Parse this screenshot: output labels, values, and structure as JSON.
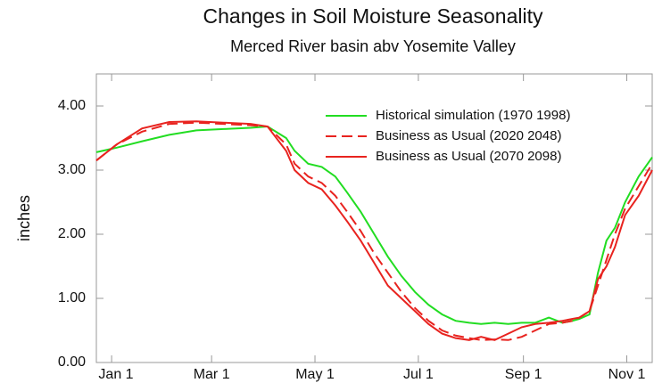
{
  "chart_data": {
    "type": "line",
    "title": "Changes in Soil  Moisture Seasonality",
    "subtitle": "Merced River basin abv Yosemite Valley",
    "y_label": "inches",
    "x": [
      -9,
      3,
      18,
      34,
      50,
      66,
      82,
      92,
      103,
      108,
      116,
      124,
      132,
      139,
      147,
      155,
      163,
      171,
      179,
      187,
      195,
      203,
      211,
      218,
      226,
      234,
      242,
      250,
      258,
      266,
      272,
      276,
      282,
      287,
      292,
      297,
      303,
      311,
      319
    ],
    "xlim": [
      -9,
      319
    ],
    "xticks": [
      {
        "value": 0,
        "label": "Jan 1"
      },
      {
        "value": 59,
        "label": "Mar 1"
      },
      {
        "value": 120,
        "label": "May 1"
      },
      {
        "value": 181,
        "label": "Jul 1"
      },
      {
        "value": 243,
        "label": "Sep 1"
      },
      {
        "value": 304,
        "label": "Nov 1"
      }
    ],
    "ylim": [
      0,
      4.5
    ],
    "yticks": [
      {
        "value": 0,
        "label": "0.00"
      },
      {
        "value": 1,
        "label": "1.00"
      },
      {
        "value": 2,
        "label": "2.00"
      },
      {
        "value": 3,
        "label": "3.00"
      },
      {
        "value": 4,
        "label": "4.00"
      }
    ],
    "legend": "upper right",
    "series": [
      {
        "name": "Historical simulation (1970  1998)",
        "color": "#22dd22",
        "dash": false,
        "values": [
          3.28,
          3.35,
          3.45,
          3.55,
          3.62,
          3.64,
          3.66,
          3.68,
          3.5,
          3.3,
          3.1,
          3.05,
          2.9,
          2.65,
          2.35,
          2.0,
          1.65,
          1.35,
          1.1,
          0.9,
          0.75,
          0.65,
          0.62,
          0.6,
          0.62,
          0.6,
          0.62,
          0.62,
          0.7,
          0.62,
          0.65,
          0.68,
          0.75,
          1.4,
          1.9,
          2.1,
          2.5,
          2.9,
          3.2
        ]
      },
      {
        "name": "Business as Usual (2020  2048)",
        "color": "#e8231f",
        "dash": true,
        "values": [
          3.15,
          3.4,
          3.6,
          3.72,
          3.74,
          3.72,
          3.7,
          3.68,
          3.4,
          3.1,
          2.9,
          2.8,
          2.6,
          2.35,
          2.05,
          1.7,
          1.4,
          1.1,
          0.85,
          0.65,
          0.5,
          0.42,
          0.38,
          0.35,
          0.36,
          0.35,
          0.4,
          0.5,
          0.6,
          0.62,
          0.65,
          0.7,
          0.8,
          1.2,
          1.6,
          2.0,
          2.4,
          2.75,
          3.1
        ]
      },
      {
        "name": "Business as Usual (2070  2098)",
        "color": "#e8231f",
        "dash": false,
        "values": [
          3.15,
          3.4,
          3.65,
          3.75,
          3.76,
          3.74,
          3.72,
          3.68,
          3.3,
          3.0,
          2.8,
          2.7,
          2.45,
          2.2,
          1.9,
          1.55,
          1.2,
          1.0,
          0.8,
          0.6,
          0.45,
          0.38,
          0.35,
          0.4,
          0.35,
          0.45,
          0.55,
          0.6,
          0.62,
          0.65,
          0.68,
          0.7,
          0.8,
          1.3,
          1.5,
          1.8,
          2.3,
          2.6,
          3.0
        ]
      }
    ]
  }
}
